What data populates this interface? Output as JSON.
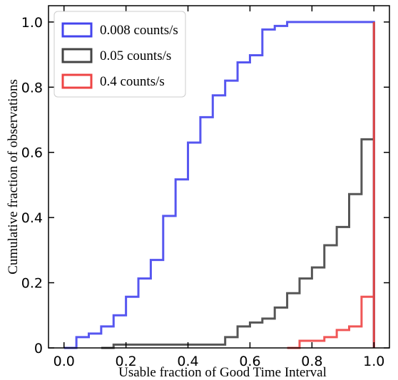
{
  "chart_data": {
    "type": "line",
    "drawstyle": "step-cumulative-histogram",
    "xlabel": "Usable fraction of Good Time Interval",
    "ylabel": "Cumulative fraction of observations",
    "xlim": [
      -0.05,
      1.05
    ],
    "ylim": [
      0,
      1.05
    ],
    "xticks": [
      0.0,
      0.2,
      0.4,
      0.6,
      0.8,
      1.0
    ],
    "xtick_labels": [
      "0.0",
      "0.2",
      "0.4",
      "0.6",
      "0.8",
      "1.0"
    ],
    "yticks": [
      0,
      0.2,
      0.4,
      0.6,
      0.8,
      1.0
    ],
    "ytick_labels": [
      "0",
      "0.2",
      "0.4",
      "0.6",
      "0.8",
      "1.0"
    ],
    "grid": false,
    "legend_position": "upper-left",
    "series": [
      {
        "name": "0.008 counts/s",
        "color": "#4444ee",
        "x": [
          0.0,
          0.04,
          0.08,
          0.12,
          0.16,
          0.2,
          0.24,
          0.28,
          0.32,
          0.36,
          0.4,
          0.44,
          0.48,
          0.52,
          0.56,
          0.6,
          0.64,
          0.68,
          0.72,
          0.76,
          0.8,
          0.84,
          0.88,
          0.92,
          0.96,
          1.0
        ],
        "y": [
          0.0,
          0.033,
          0.044,
          0.066,
          0.1,
          0.157,
          0.213,
          0.27,
          0.405,
          0.517,
          0.63,
          0.708,
          0.775,
          0.82,
          0.876,
          0.898,
          0.977,
          0.988,
          1.0,
          1.0,
          1.0,
          1.0,
          1.0,
          1.0,
          1.0,
          1.0
        ]
      },
      {
        "name": "0.05 counts/s",
        "color": "#444444",
        "x": [
          0.12,
          0.16,
          0.2,
          0.24,
          0.28,
          0.32,
          0.36,
          0.4,
          0.44,
          0.48,
          0.52,
          0.56,
          0.6,
          0.64,
          0.68,
          0.72,
          0.76,
          0.8,
          0.84,
          0.88,
          0.92,
          0.96,
          1.0
        ],
        "y": [
          0.0,
          0.01,
          0.01,
          0.01,
          0.01,
          0.01,
          0.01,
          0.01,
          0.01,
          0.01,
          0.033,
          0.066,
          0.078,
          0.09,
          0.124,
          0.168,
          0.213,
          0.247,
          0.315,
          0.371,
          0.472,
          0.64,
          1.0
        ]
      },
      {
        "name": "0.4 counts/s",
        "color": "#ee4444",
        "x": [
          0.72,
          0.76,
          0.8,
          0.84,
          0.88,
          0.92,
          0.96,
          1.0
        ],
        "y": [
          0.0,
          0.022,
          0.022,
          0.033,
          0.055,
          0.066,
          0.157,
          1.0
        ]
      }
    ]
  }
}
